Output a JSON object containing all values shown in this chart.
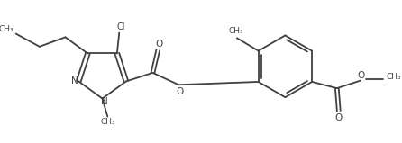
{
  "background_color": "#ffffff",
  "line_color": "#404040",
  "line_width": 1.3,
  "figsize": [
    4.46,
    1.59
  ],
  "dpi": 100,
  "xlim": [
    0,
    9.0
  ],
  "ylim": [
    0,
    3.2
  ]
}
